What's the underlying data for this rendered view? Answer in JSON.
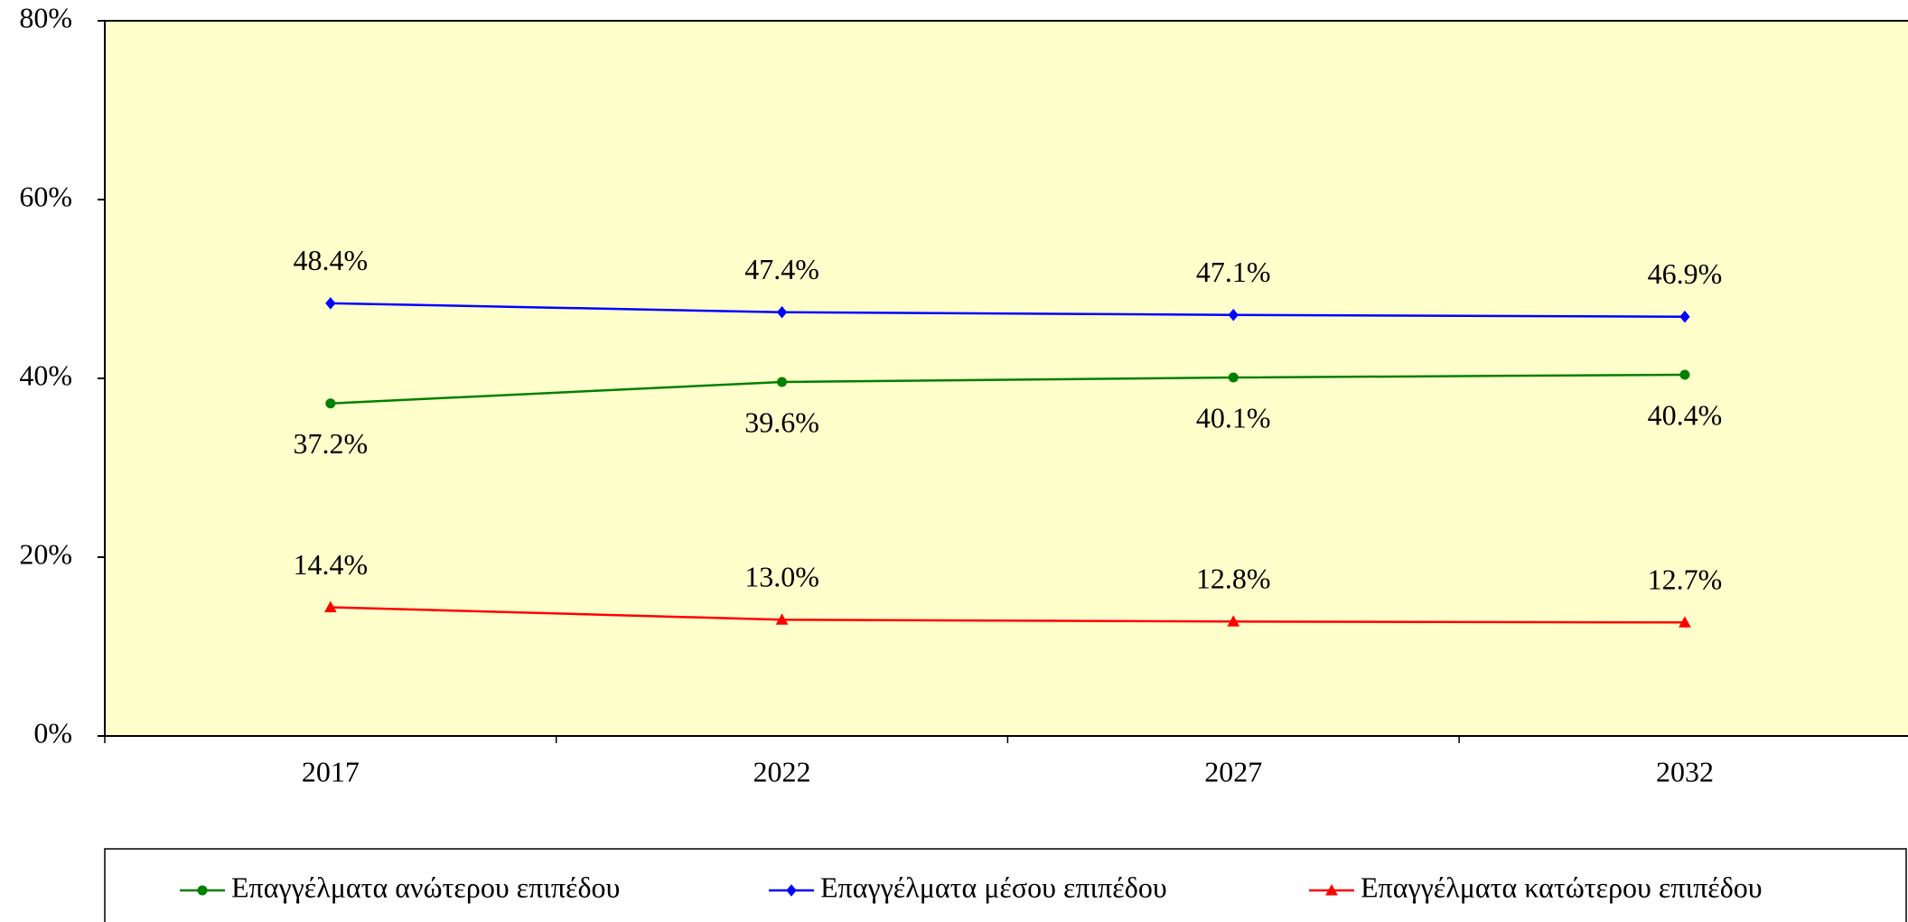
{
  "chart_data": {
    "type": "line",
    "categories": [
      "2017",
      "2022",
      "2027",
      "2032"
    ],
    "series": [
      {
        "name": "Επαγγέλματα ανώτερου επιπέδου",
        "color": "#008000",
        "marker": "circle",
        "label_position": "below",
        "values": [
          37.2,
          39.6,
          40.1,
          40.4
        ],
        "value_labels": [
          "37.2%",
          "39.6%",
          "40.1%",
          "40.4%"
        ]
      },
      {
        "name": "Επαγγέλματα μέσου επιπέδου",
        "color": "#0000ff",
        "marker": "diamond",
        "label_position": "above",
        "values": [
          48.4,
          47.4,
          47.1,
          46.9
        ],
        "value_labels": [
          "48.4%",
          "47.4%",
          "47.1%",
          "46.9%"
        ]
      },
      {
        "name": "Επαγγέλματα κατώτερου επιπέδου",
        "color": "#ff0000",
        "marker": "triangle",
        "label_position": "above",
        "values": [
          14.4,
          13.0,
          12.8,
          12.7
        ],
        "value_labels": [
          "14.4%",
          "13.0%",
          "12.8%",
          "12.7%"
        ]
      }
    ],
    "ylim": [
      0,
      80
    ],
    "yticks": [
      {
        "value": 0,
        "label": "0%"
      },
      {
        "value": 20,
        "label": "20%"
      },
      {
        "value": 40,
        "label": "40%"
      },
      {
        "value": 60,
        "label": "60%"
      },
      {
        "value": 80,
        "label": "80%"
      }
    ],
    "plot_background": "#ffffcc",
    "legend": "bottom"
  }
}
